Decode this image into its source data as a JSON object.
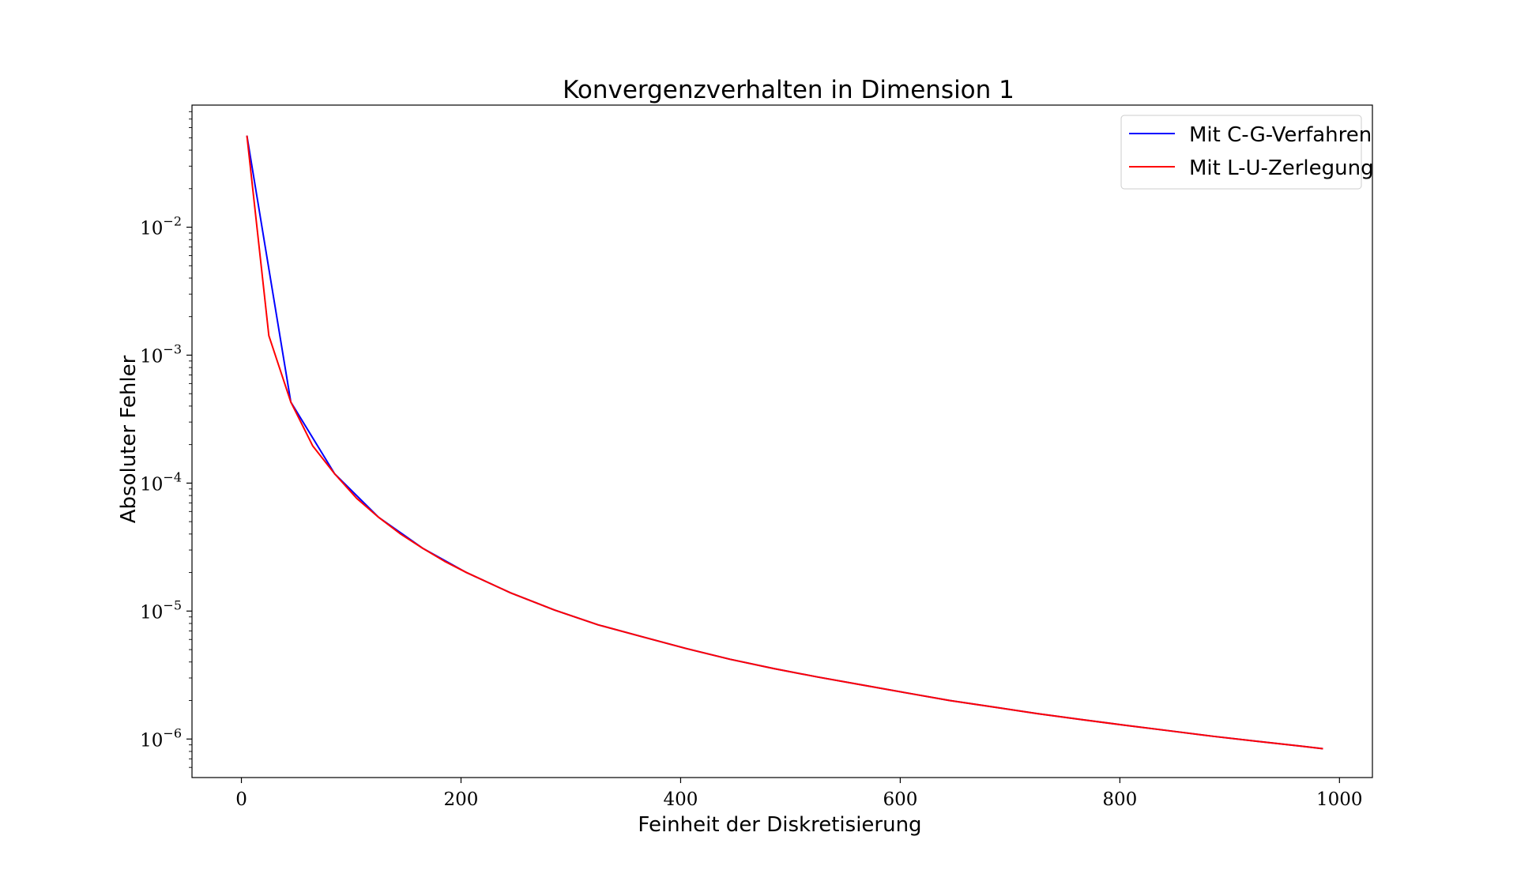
{
  "chart_data": {
    "type": "line",
    "title": "Konvergenzverhalten in Dimension 1",
    "xlabel": "Feinheit der Diskretisierung",
    "ylabel": "Absoluter Fehler",
    "xlim": [
      -45,
      1030
    ],
    "ylim": [
      5e-07,
      0.09
    ],
    "yscale": "log",
    "grid": false,
    "legend_position": "top-right",
    "x_ticks": [
      0,
      200,
      400,
      600,
      800,
      1000
    ],
    "y_ticks": [
      {
        "value": 1e-06,
        "base": "10",
        "exp": "−6"
      },
      {
        "value": 1e-05,
        "base": "10",
        "exp": "−5"
      },
      {
        "value": 0.0001,
        "base": "10",
        "exp": "−4"
      },
      {
        "value": 0.001,
        "base": "10",
        "exp": "−3"
      },
      {
        "value": 0.01,
        "base": "10",
        "exp": "−2"
      }
    ],
    "series": [
      {
        "name": "Mit C-G-Verfahren",
        "color": "#0000ff",
        "x": [
          5,
          45,
          85,
          125,
          165,
          205,
          245,
          285,
          325,
          365,
          405,
          445,
          485,
          525,
          565,
          605,
          645,
          685,
          725,
          765,
          805,
          845,
          885,
          925,
          965,
          985
        ],
        "y": [
          0.052,
          0.00043,
          0.000118,
          5.4e-05,
          3.1e-05,
          2e-05,
          1.39e-05,
          1.02e-05,
          7.8e-06,
          6.3e-06,
          5.1e-06,
          4.2e-06,
          3.55e-06,
          3.05e-06,
          2.65e-06,
          2.3e-06,
          2e-06,
          1.78e-06,
          1.58e-06,
          1.42e-06,
          1.28e-06,
          1.16e-06,
          1.05e-06,
          9.6e-07,
          8.8e-07,
          8.4e-07
        ]
      },
      {
        "name": "Mit L-U-Zerlegung",
        "color": "#ff0000",
        "x": [
          5,
          25,
          45,
          65,
          85,
          105,
          125,
          145,
          165,
          185,
          205,
          245,
          285,
          325,
          365,
          405,
          445,
          485,
          525,
          565,
          605,
          645,
          685,
          725,
          765,
          805,
          845,
          885,
          925,
          965,
          985
        ],
        "y": [
          0.052,
          0.00142,
          0.00043,
          0.000195,
          0.000118,
          7.6e-05,
          5.4e-05,
          4e-05,
          3.1e-05,
          2.45e-05,
          2e-05,
          1.39e-05,
          1.02e-05,
          7.8e-06,
          6.3e-06,
          5.1e-06,
          4.2e-06,
          3.55e-06,
          3.05e-06,
          2.65e-06,
          2.3e-06,
          2e-06,
          1.78e-06,
          1.58e-06,
          1.42e-06,
          1.28e-06,
          1.16e-06,
          1.05e-06,
          9.6e-07,
          8.8e-07,
          8.4e-07
        ]
      }
    ]
  }
}
